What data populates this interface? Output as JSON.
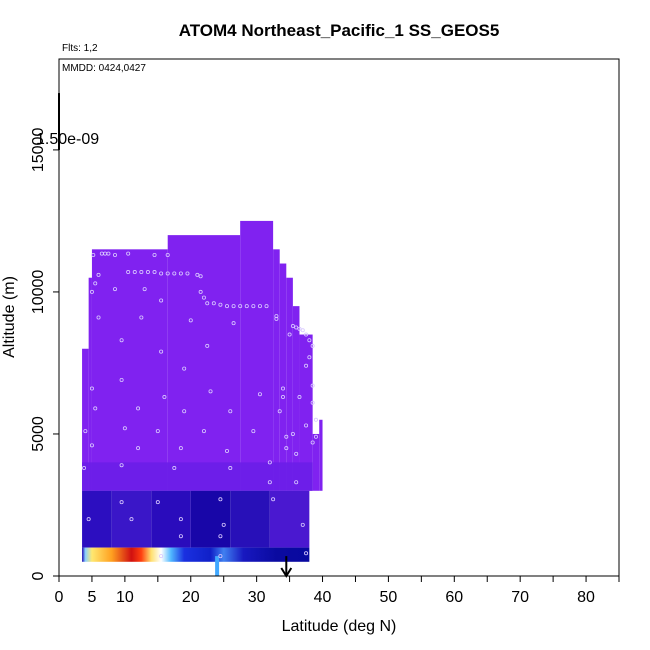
{
  "chart_data": {
    "type": "heatmap",
    "title": "ATOM4 Northeast_Pacific_1 SS_GEOS5",
    "flights_label": "Flts: 1,2",
    "dates_label": "MMDD: 0424,0427",
    "colorbar_max_label": "1.50e-09",
    "xlabel": "Latitude (deg N)",
    "ylabel": "Altitude (m)",
    "xlim": [
      0,
      85
    ],
    "ylim": [
      0,
      18200
    ],
    "x_ticks": [
      0,
      5,
      10,
      20,
      30,
      40,
      50,
      60,
      70,
      80
    ],
    "x_minor_ticks": [
      15,
      25,
      35,
      45,
      55,
      65,
      75,
      85
    ],
    "y_ticks": [
      0,
      5000,
      10000,
      15000
    ],
    "grid": false,
    "colors": {
      "upper_fill": "#8022f0",
      "mid_fill": "#6a1ee8",
      "low_fill": "#3a12c8",
      "dark_fill": "#1c06b0",
      "marker_stroke": "#d8c8ff",
      "arrow": "#000000"
    },
    "domain_profile": [
      {
        "x0": 3.5,
        "x1": 4.5,
        "y0": 3000,
        "y1": 8000
      },
      {
        "x0": 4.5,
        "x1": 5.0,
        "y0": 3000,
        "y1": 10500
      },
      {
        "x0": 5.0,
        "x1": 16.5,
        "y0": 3000,
        "y1": 11500
      },
      {
        "x0": 16.5,
        "x1": 27.5,
        "y0": 3000,
        "y1": 12000
      },
      {
        "x0": 27.5,
        "x1": 32.5,
        "y0": 3000,
        "y1": 12500
      },
      {
        "x0": 32.5,
        "x1": 33.5,
        "y0": 3000,
        "y1": 11500
      },
      {
        "x0": 33.5,
        "x1": 34.5,
        "y0": 3000,
        "y1": 11000
      },
      {
        "x0": 34.5,
        "x1": 35.5,
        "y0": 3000,
        "y1": 10500
      },
      {
        "x0": 35.5,
        "x1": 36.5,
        "y0": 3000,
        "y1": 9500
      },
      {
        "x0": 36.5,
        "x1": 38.5,
        "y0": 3000,
        "y1": 8500
      },
      {
        "x0": 38.5,
        "x1": 39.5,
        "y0": 3000,
        "y1": 5000
      },
      {
        "x0": 39.5,
        "x1": 40.0,
        "y0": 3000,
        "y1": 5500
      }
    ],
    "low_band": [
      {
        "x0": 3.5,
        "x1": 8,
        "y0": 1000,
        "y1": 3000,
        "color": "#2c0ec0"
      },
      {
        "x0": 8,
        "x1": 14,
        "y0": 1000,
        "y1": 3000,
        "color": "#3a16c8"
      },
      {
        "x0": 14,
        "x1": 20,
        "y0": 1000,
        "y1": 3000,
        "color": "#2a0cbc"
      },
      {
        "x0": 20,
        "x1": 26,
        "y0": 1000,
        "y1": 3000,
        "color": "#1806a8"
      },
      {
        "x0": 26,
        "x1": 32,
        "y0": 1000,
        "y1": 3000,
        "color": "#2810b8"
      },
      {
        "x0": 32,
        "x1": 38,
        "y0": 1000,
        "y1": 3000,
        "color": "#4a18d0"
      }
    ],
    "surface_band": {
      "y0": 500,
      "y1": 1000,
      "x0": 3.5,
      "x1": 38,
      "stops": [
        {
          "x": 3.5,
          "color": "#1a06b0"
        },
        {
          "x": 4.0,
          "color": "#8ad0ff"
        },
        {
          "x": 5.0,
          "color": "#ffe870"
        },
        {
          "x": 8.0,
          "color": "#ffa020"
        },
        {
          "x": 11.0,
          "color": "#d01010"
        },
        {
          "x": 12.5,
          "color": "#ff4010"
        },
        {
          "x": 14.0,
          "color": "#ffe070"
        },
        {
          "x": 15.5,
          "color": "#ffffff"
        },
        {
          "x": 17.0,
          "color": "#50b8ff"
        },
        {
          "x": 19.0,
          "color": "#1a30e0"
        },
        {
          "x": 23.0,
          "color": "#1020c8"
        },
        {
          "x": 25.0,
          "color": "#4080f0"
        },
        {
          "x": 28.0,
          "color": "#1818c0"
        },
        {
          "x": 33.0,
          "color": "#0a0aa0"
        },
        {
          "x": 38.0,
          "color": "#0808a0"
        }
      ]
    },
    "surface_spike": {
      "x": 24,
      "y0": 0,
      "y1": 700,
      "color": "#40a8ff"
    },
    "wind_arrow": {
      "x": 34.5,
      "y_top": 700,
      "y_bottom": 0
    },
    "observations": [
      {
        "x": 5.2,
        "y": 11300
      },
      {
        "x": 6.5,
        "y": 11350
      },
      {
        "x": 7.0,
        "y": 11350
      },
      {
        "x": 7.5,
        "y": 11350
      },
      {
        "x": 8.5,
        "y": 11300
      },
      {
        "x": 10.5,
        "y": 11350
      },
      {
        "x": 14.5,
        "y": 11300
      },
      {
        "x": 16.5,
        "y": 11300
      },
      {
        "x": 10.5,
        "y": 10700
      },
      {
        "x": 11.5,
        "y": 10700
      },
      {
        "x": 12.5,
        "y": 10700
      },
      {
        "x": 13.5,
        "y": 10700
      },
      {
        "x": 14.5,
        "y": 10700
      },
      {
        "x": 15.5,
        "y": 10650
      },
      {
        "x": 16.5,
        "y": 10650
      },
      {
        "x": 17.5,
        "y": 10650
      },
      {
        "x": 18.5,
        "y": 10650
      },
      {
        "x": 19.5,
        "y": 10650
      },
      {
        "x": 21.0,
        "y": 10600
      },
      {
        "x": 21.5,
        "y": 10550
      },
      {
        "x": 6.0,
        "y": 10600
      },
      {
        "x": 5.5,
        "y": 10300
      },
      {
        "x": 5.0,
        "y": 10000
      },
      {
        "x": 8.5,
        "y": 10100
      },
      {
        "x": 13.0,
        "y": 10100
      },
      {
        "x": 21.5,
        "y": 10000
      },
      {
        "x": 22.0,
        "y": 9800
      },
      {
        "x": 22.5,
        "y": 9600
      },
      {
        "x": 23.5,
        "y": 9600
      },
      {
        "x": 24.5,
        "y": 9550
      },
      {
        "x": 25.5,
        "y": 9500
      },
      {
        "x": 26.5,
        "y": 9500
      },
      {
        "x": 27.5,
        "y": 9500
      },
      {
        "x": 28.5,
        "y": 9500
      },
      {
        "x": 29.5,
        "y": 9500
      },
      {
        "x": 30.5,
        "y": 9500
      },
      {
        "x": 31.5,
        "y": 9500
      },
      {
        "x": 15.5,
        "y": 9700
      },
      {
        "x": 6.0,
        "y": 9100
      },
      {
        "x": 12.5,
        "y": 9100
      },
      {
        "x": 20.0,
        "y": 9000
      },
      {
        "x": 26.5,
        "y": 8900
      },
      {
        "x": 33.0,
        "y": 9150
      },
      {
        "x": 33.0,
        "y": 9050
      },
      {
        "x": 35.5,
        "y": 8800
      },
      {
        "x": 36.0,
        "y": 8750
      },
      {
        "x": 36.5,
        "y": 8700
      },
      {
        "x": 37.0,
        "y": 8650
      },
      {
        "x": 35.0,
        "y": 8500
      },
      {
        "x": 37.5,
        "y": 8500
      },
      {
        "x": 38.0,
        "y": 8300
      },
      {
        "x": 38.5,
        "y": 8100
      },
      {
        "x": 9.5,
        "y": 8300
      },
      {
        "x": 15.5,
        "y": 7900
      },
      {
        "x": 22.5,
        "y": 8100
      },
      {
        "x": 38.0,
        "y": 7700
      },
      {
        "x": 37.5,
        "y": 7400
      },
      {
        "x": 19.0,
        "y": 7300
      },
      {
        "x": 9.5,
        "y": 6900
      },
      {
        "x": 38.5,
        "y": 6700
      },
      {
        "x": 5.0,
        "y": 6600
      },
      {
        "x": 23.0,
        "y": 6500
      },
      {
        "x": 30.5,
        "y": 6400
      },
      {
        "x": 34.0,
        "y": 6600
      },
      {
        "x": 36.5,
        "y": 6300
      },
      {
        "x": 16.0,
        "y": 6300
      },
      {
        "x": 34.0,
        "y": 6300
      },
      {
        "x": 38.5,
        "y": 6100
      },
      {
        "x": 5.5,
        "y": 5900
      },
      {
        "x": 12.0,
        "y": 5900
      },
      {
        "x": 19.0,
        "y": 5800
      },
      {
        "x": 26.0,
        "y": 5800
      },
      {
        "x": 33.5,
        "y": 5800
      },
      {
        "x": 39.0,
        "y": 5500
      },
      {
        "x": 37.5,
        "y": 5300
      },
      {
        "x": 4.0,
        "y": 5100
      },
      {
        "x": 10.0,
        "y": 5200
      },
      {
        "x": 15.0,
        "y": 5100
      },
      {
        "x": 22.0,
        "y": 5100
      },
      {
        "x": 29.5,
        "y": 5100
      },
      {
        "x": 35.5,
        "y": 5000
      },
      {
        "x": 34.5,
        "y": 4900
      },
      {
        "x": 39.0,
        "y": 4900
      },
      {
        "x": 38.5,
        "y": 4700
      },
      {
        "x": 5.0,
        "y": 4600
      },
      {
        "x": 12.0,
        "y": 4500
      },
      {
        "x": 18.5,
        "y": 4500
      },
      {
        "x": 34.5,
        "y": 4500
      },
      {
        "x": 25.5,
        "y": 4400
      },
      {
        "x": 36.0,
        "y": 4300
      },
      {
        "x": 32.0,
        "y": 4000
      },
      {
        "x": 3.8,
        "y": 3800
      },
      {
        "x": 9.5,
        "y": 3900
      },
      {
        "x": 17.5,
        "y": 3800
      },
      {
        "x": 26.0,
        "y": 3800
      },
      {
        "x": 32.0,
        "y": 3300
      },
      {
        "x": 36.0,
        "y": 3300
      },
      {
        "x": 9.5,
        "y": 2600
      },
      {
        "x": 15.0,
        "y": 2600
      },
      {
        "x": 24.5,
        "y": 2700
      },
      {
        "x": 32.5,
        "y": 2700
      },
      {
        "x": 4.5,
        "y": 2000
      },
      {
        "x": 11.0,
        "y": 2000
      },
      {
        "x": 18.5,
        "y": 2000
      },
      {
        "x": 25.0,
        "y": 1800
      },
      {
        "x": 37.0,
        "y": 1800
      },
      {
        "x": 18.5,
        "y": 1400
      },
      {
        "x": 24.5,
        "y": 1400
      },
      {
        "x": 37.5,
        "y": 800
      },
      {
        "x": 15.5,
        "y": 700
      },
      {
        "x": 24.5,
        "y": 700
      }
    ],
    "colorbar_tick": {
      "x": 0,
      "y0": 17000,
      "y1": 15000
    }
  }
}
